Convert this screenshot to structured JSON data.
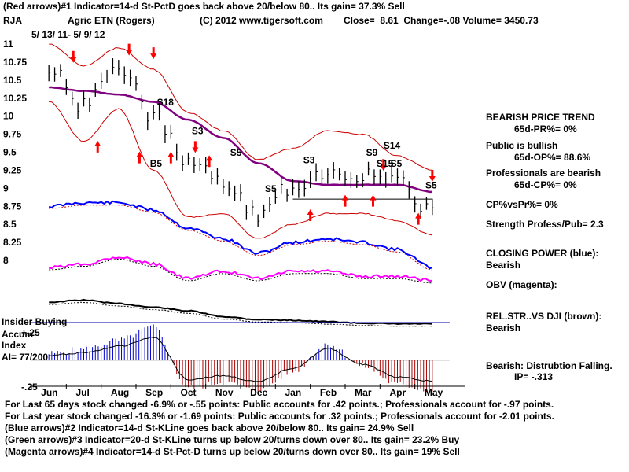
{
  "header": {
    "line1": "(Red arrows)#1 Indicator=14-d St-PctD goes back above 20/below 80..  Its gain= 37.3% Sell",
    "ticker": "RJA",
    "company": "Agric ETN (Rogers)",
    "copyright": "(C) 2012 www.tigersoft.com",
    "close_label": "Close=",
    "close": "8.61",
    "change_label": "Change=",
    "change": "-.08",
    "volume_label": "Volume=",
    "volume": "3450.73",
    "date_range": "5/ 13/ 11-  5/ 9/ 12"
  },
  "panel": {
    "trend_title": "BEARISH PRICE TREND",
    "pr": "65d-PR%= 0%",
    "public_title": "Public is bullish",
    "op": "65d-OP%= 88.6%",
    "prof_title": "Professionals are bearish",
    "cp": "65d-CP%= 0%",
    "cp_vs_pr": "CP%vsPr%=  0%",
    "strength": "Strength Profess/Pub= 2.3",
    "closing_power_title": "CLOSING POWER (blue):",
    "closing_power_value": "Bearish",
    "obv_label": "OBV (magenta):",
    "relstr_title": "REL.STR..VS DJI (brown):",
    "relstr_value": "Bearish",
    "bearish_dist": "Bearish: Distrubtion Falling.",
    "ip": "IP= -.313"
  },
  "accum": {
    "insider_buying": "Insider Buying",
    "plus": "+.25",
    "accum_label": "Accum",
    "index_label": "Index",
    "ai": "AI= 77/200",
    "minus": "-.25"
  },
  "footer": {
    "line1": "For Last 65 days stock changed -6.9% or -.55 points:  Public accounts for  .42 points.;  Professionals account for -.97 points.",
    "line2": "For Last year stock changed -16.3% or -1.69 points:  Public accounts for  .32 points.;  Professionals account for -2.01 points.",
    "line3": "(Blue arrows)#2 Indicator=14-d St-KLine goes back above 20/below 80..  Its gain= 24.9% Sell",
    "line4": "(Green arrows)#3 Indicator=20-d St-KLine turns up below 20/turns down over 80..  Its gain= 23.2% Buy",
    "line5": "(Magenta arrows)#4 Indicator=14-d St-Pct-D turns up below 20/turns down over 80..  Its gain= 19% Sell"
  },
  "colors": {
    "price": "#000000",
    "band": "#cc0000",
    "ma": "#800080",
    "closing_power": "#0000ff",
    "obv": "#ff00ff",
    "relstr": "#000000",
    "accum_pos": "#0000cc",
    "accum_neg": "#aa0000",
    "arrow": "#ff0000"
  },
  "chart_data": {
    "type": "line",
    "title": "RJA Agric ETN (Rogers)",
    "xlabel": "",
    "ylabel": "",
    "ylim": [
      8,
      11
    ],
    "yticks": [
      11,
      10.75,
      10.5,
      10.25,
      10,
      9.75,
      9.5,
      9.25,
      9,
      8.75,
      8.5,
      8.25,
      8
    ],
    "x": [
      "Jun",
      "Jul",
      "Aug",
      "Sep",
      "Oct",
      "Nov",
      "Dec",
      "Jan",
      "Feb",
      "Mar",
      "Apr",
      "May"
    ],
    "series": [
      {
        "name": "Price",
        "values": [
          10.65,
          10.15,
          10.7,
          10.0,
          9.3,
          9.1,
          8.6,
          9.05,
          9.25,
          9.2,
          9.05,
          8.7
        ]
      },
      {
        "name": "65-day MA",
        "values": [
          10.4,
          10.35,
          10.3,
          10.2,
          9.95,
          9.7,
          9.35,
          9.1,
          9.05,
          9.05,
          9.05,
          8.95
        ]
      },
      {
        "name": "Upper Band",
        "values": [
          11.0,
          10.7,
          10.95,
          10.65,
          10.05,
          9.8,
          9.4,
          9.55,
          9.8,
          9.75,
          9.45,
          9.25
        ]
      },
      {
        "name": "Lower Band",
        "values": [
          10.2,
          9.65,
          10.1,
          9.25,
          8.6,
          8.65,
          8.3,
          8.5,
          8.65,
          8.65,
          8.55,
          8.35
        ]
      }
    ],
    "annotations": [
      "S18",
      "S3",
      "S5",
      "S5",
      "S3",
      "S14",
      "S9",
      "S15",
      "S5",
      "S5",
      "B5"
    ],
    "indicators": [
      {
        "name": "Closing Power (blue)",
        "values": [
          8.75,
          8.8,
          8.8,
          8.7,
          8.45,
          8.3,
          8.1,
          8.25,
          8.3,
          8.25,
          8.15,
          7.9
        ]
      },
      {
        "name": "OBV (magenta)",
        "values": [
          7.9,
          7.95,
          8.05,
          7.95,
          7.75,
          7.85,
          7.75,
          7.85,
          7.85,
          7.78,
          7.78,
          7.72
        ]
      },
      {
        "name": "Rel.Str vs DJI",
        "values": [
          7.42,
          7.45,
          7.4,
          7.35,
          7.3,
          7.22,
          7.18,
          7.17,
          7.15,
          7.13,
          7.12,
          7.12
        ]
      }
    ],
    "accumulation_index": {
      "levels": [
        "+.25",
        "-.25"
      ],
      "ai": "77/200",
      "values": [
        0.06,
        0.1,
        0.18,
        0.3,
        -0.25,
        -0.2,
        -0.28,
        -0.1,
        0.15,
        -0.05,
        -0.22,
        -0.27
      ]
    }
  }
}
